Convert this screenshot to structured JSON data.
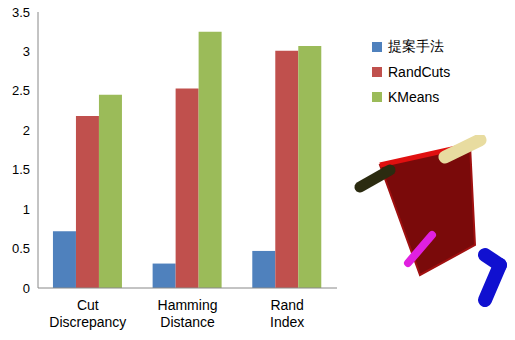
{
  "chart_data": {
    "type": "bar",
    "categories": [
      "Cut Discrepancy",
      "Hamming Distance",
      "Rand Index"
    ],
    "series": [
      {
        "name": "提案手法",
        "color": "#4f81bd",
        "values": [
          0.72,
          0.31,
          0.47
        ]
      },
      {
        "name": "RandCuts",
        "color": "#c0504d",
        "values": [
          2.18,
          2.53,
          3.01
        ]
      },
      {
        "name": "KMeans",
        "color": "#9bbb59",
        "values": [
          2.45,
          3.25,
          3.07
        ]
      }
    ],
    "ylim": [
      0,
      3.5
    ],
    "yticks": [
      0,
      0.5,
      1,
      1.5,
      2,
      2.5,
      3,
      3.5
    ],
    "grid": false,
    "legend": "right"
  }
}
